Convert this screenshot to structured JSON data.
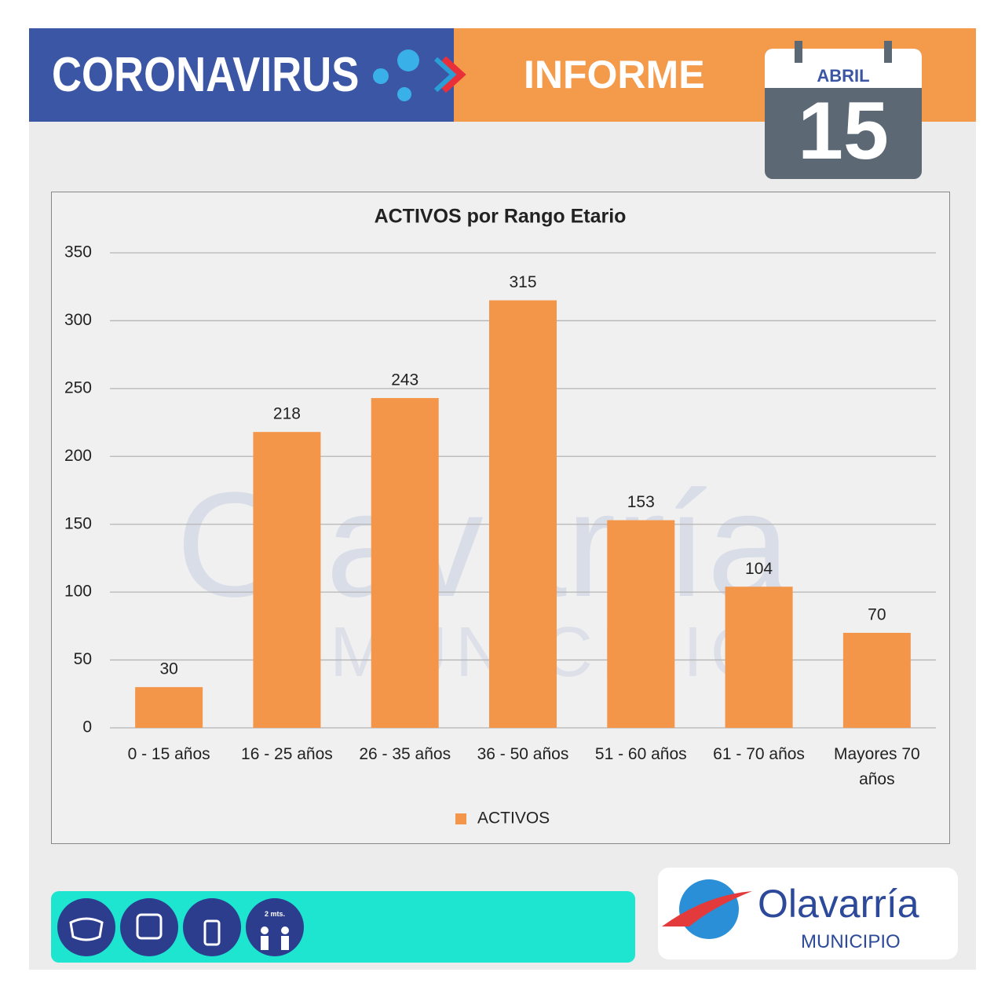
{
  "header": {
    "title": "CORONAVIRUS",
    "subtitle": "INFORME",
    "month": "ABRIL",
    "day": "15"
  },
  "watermark": {
    "title": "Olavarría",
    "subtitle": "MUNICIPIO"
  },
  "chart_data": {
    "type": "bar",
    "title": "ACTIVOS por Rango Etario",
    "categories": [
      "0 - 15 años",
      "16 - 25 años",
      "26 - 35 años",
      "36 - 50 años",
      "51 - 60 años",
      "61 - 70 años",
      "Mayores 70 años"
    ],
    "series": [
      {
        "name": "ACTIVOS",
        "color": "#f4964a",
        "values": [
          30,
          218,
          243,
          315,
          153,
          104,
          70
        ]
      }
    ],
    "ylim": [
      0,
      350
    ],
    "yticks": [
      0,
      50,
      100,
      150,
      200,
      250,
      300,
      350
    ],
    "grid": true,
    "legend": "bottom"
  },
  "footer": {
    "distance": "2 mts.",
    "logo": "Olavarría",
    "logo_sub": "MUNICIPIO"
  }
}
